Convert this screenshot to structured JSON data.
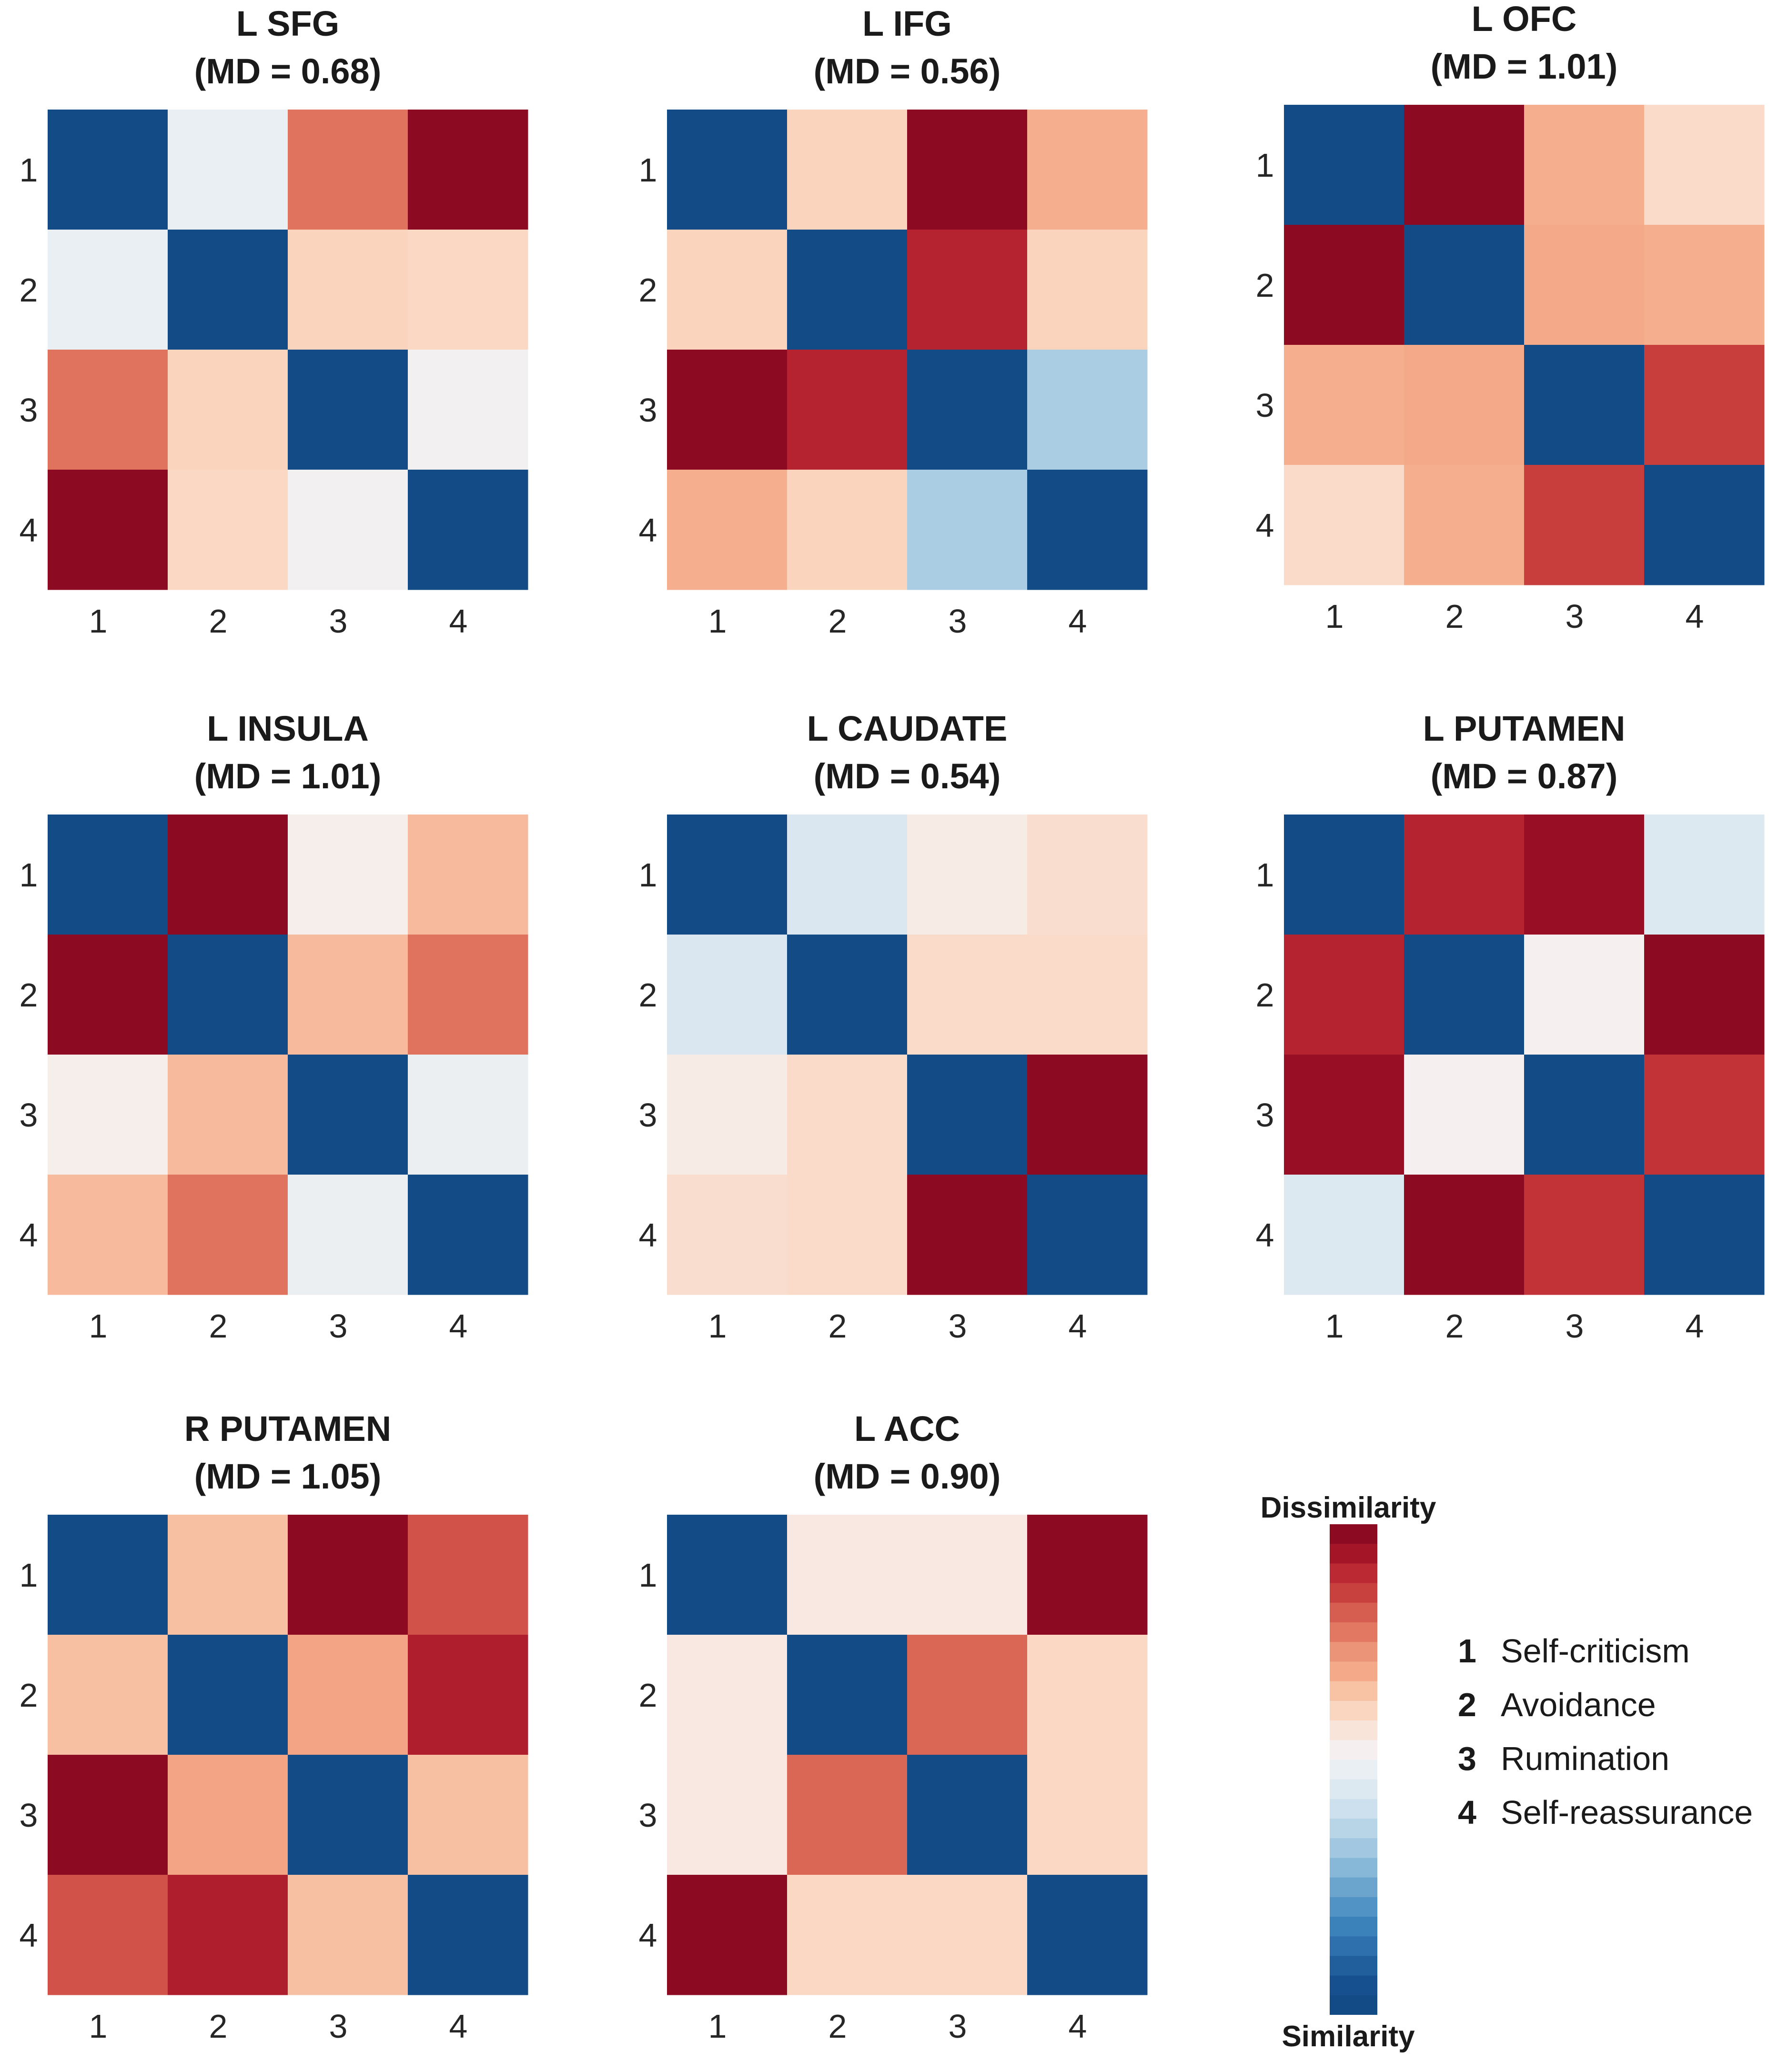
{
  "figure": {
    "colors": {
      "similarity": "#134b86",
      "dissimilarity": "#8c0a22",
      "neutral": "#f7f3f2"
    }
  },
  "chart_data": [
    {
      "type": "heatmap",
      "title": "L SFG",
      "md_text": "(MD = 0.68)",
      "md_value": 0.68,
      "x_tick_labels": [
        "1",
        "2",
        "3",
        "4"
      ],
      "y_tick_labels": [
        "1",
        "2",
        "3",
        "4"
      ],
      "values": [
        [
          0.0,
          0.5,
          0.8,
          1.0
        ],
        [
          0.5,
          0.0,
          0.63,
          0.62
        ],
        [
          0.8,
          0.63,
          0.0,
          0.53
        ],
        [
          1.0,
          0.62,
          0.53,
          0.0
        ]
      ]
    },
    {
      "type": "heatmap",
      "title": "L IFG",
      "md_text": "(MD = 0.56)",
      "md_value": 0.56,
      "x_tick_labels": [
        "1",
        "2",
        "3",
        "4"
      ],
      "y_tick_labels": [
        "1",
        "2",
        "3",
        "4"
      ],
      "values": [
        [
          0.0,
          0.63,
          1.0,
          0.7
        ],
        [
          0.63,
          0.0,
          0.93,
          0.63
        ],
        [
          1.0,
          0.93,
          0.0,
          0.35
        ],
        [
          0.7,
          0.63,
          0.35,
          0.0
        ]
      ]
    },
    {
      "type": "heatmap",
      "title": "L OFC",
      "md_text": "(MD = 1.01)",
      "md_value": 1.01,
      "x_tick_labels": [
        "1",
        "2",
        "3",
        "4"
      ],
      "y_tick_labels": [
        "1",
        "2",
        "3",
        "4"
      ],
      "values": [
        [
          0.0,
          1.0,
          0.7,
          0.61
        ],
        [
          1.0,
          0.0,
          0.71,
          0.7
        ],
        [
          0.7,
          0.71,
          0.0,
          0.88
        ],
        [
          0.61,
          0.7,
          0.88,
          0.0
        ]
      ]
    },
    {
      "type": "heatmap",
      "title": "L INSULA",
      "md_text": "(MD = 1.01)",
      "md_value": 1.01,
      "x_tick_labels": [
        "1",
        "2",
        "3",
        "4"
      ],
      "y_tick_labels": [
        "1",
        "2",
        "3",
        "4"
      ],
      "values": [
        [
          0.0,
          1.0,
          0.55,
          0.68
        ],
        [
          1.0,
          0.0,
          0.68,
          0.8
        ],
        [
          0.55,
          0.68,
          0.0,
          0.51
        ],
        [
          0.68,
          0.8,
          0.51,
          0.0
        ]
      ]
    },
    {
      "type": "heatmap",
      "title": "L CAUDATE",
      "md_text": "(MD = 0.54)",
      "md_value": 0.54,
      "x_tick_labels": [
        "1",
        "2",
        "3",
        "4"
      ],
      "y_tick_labels": [
        "1",
        "2",
        "3",
        "4"
      ],
      "values": [
        [
          0.0,
          0.45,
          0.56,
          0.6
        ],
        [
          0.45,
          0.0,
          0.61,
          0.61
        ],
        [
          0.56,
          0.61,
          0.0,
          1.0
        ],
        [
          0.6,
          0.61,
          1.0,
          0.0
        ]
      ]
    },
    {
      "type": "heatmap",
      "title": "L PUTAMEN",
      "md_text": "(MD = 0.87)",
      "md_value": 0.87,
      "x_tick_labels": [
        "1",
        "2",
        "3",
        "4"
      ],
      "y_tick_labels": [
        "1",
        "2",
        "3",
        "4"
      ],
      "values": [
        [
          0.0,
          0.93,
          0.98,
          0.46
        ],
        [
          0.93,
          0.0,
          0.54,
          1.0
        ],
        [
          0.98,
          0.54,
          0.0,
          0.9
        ],
        [
          0.46,
          1.0,
          0.9,
          0.0
        ]
      ]
    },
    {
      "type": "heatmap",
      "title": "R PUTAMEN",
      "md_text": "(MD = 1.05)",
      "md_value": 1.05,
      "x_tick_labels": [
        "1",
        "2",
        "3",
        "4"
      ],
      "y_tick_labels": [
        "1",
        "2",
        "3",
        "4"
      ],
      "values": [
        [
          0.0,
          0.67,
          1.0,
          0.85
        ],
        [
          0.67,
          0.0,
          0.72,
          0.94
        ],
        [
          1.0,
          0.72,
          0.0,
          0.67
        ],
        [
          0.85,
          0.94,
          0.67,
          0.0
        ]
      ]
    },
    {
      "type": "heatmap",
      "title": "L ACC",
      "md_text": "(MD = 0.90)",
      "md_value": 0.9,
      "x_tick_labels": [
        "1",
        "2",
        "3",
        "4"
      ],
      "y_tick_labels": [
        "1",
        "2",
        "3",
        "4"
      ],
      "values": [
        [
          0.0,
          0.57,
          0.57,
          1.0
        ],
        [
          0.57,
          0.0,
          0.82,
          0.62
        ],
        [
          0.57,
          0.82,
          0.0,
          0.62
        ],
        [
          1.0,
          0.62,
          0.62,
          0.0
        ]
      ]
    }
  ],
  "colorbar": {
    "top_label": "Dissimilarity",
    "bottom_label": "Similarity",
    "steps": [
      "#8c0a22",
      "#a51528",
      "#bb2a33",
      "#c9413e",
      "#d65e50",
      "#e27862",
      "#ec9478",
      "#f4aa89",
      "#f8c2a5",
      "#fad6c0",
      "#f9e4da",
      "#f5f0ef",
      "#e9eff3",
      "#dde9f1",
      "#cce0ed",
      "#b8d5e8",
      "#a2c8e1",
      "#88b8d8",
      "#6ba5ce",
      "#5093c4",
      "#3c82ba",
      "#2e70ad",
      "#215e9c",
      "#17508f",
      "#134b86"
    ]
  },
  "key": [
    {
      "num": "1",
      "label": "Self-criticism"
    },
    {
      "num": "2",
      "label": "Avoidance"
    },
    {
      "num": "3",
      "label": "Rumination"
    },
    {
      "num": "4",
      "label": "Self-reassurance"
    }
  ]
}
